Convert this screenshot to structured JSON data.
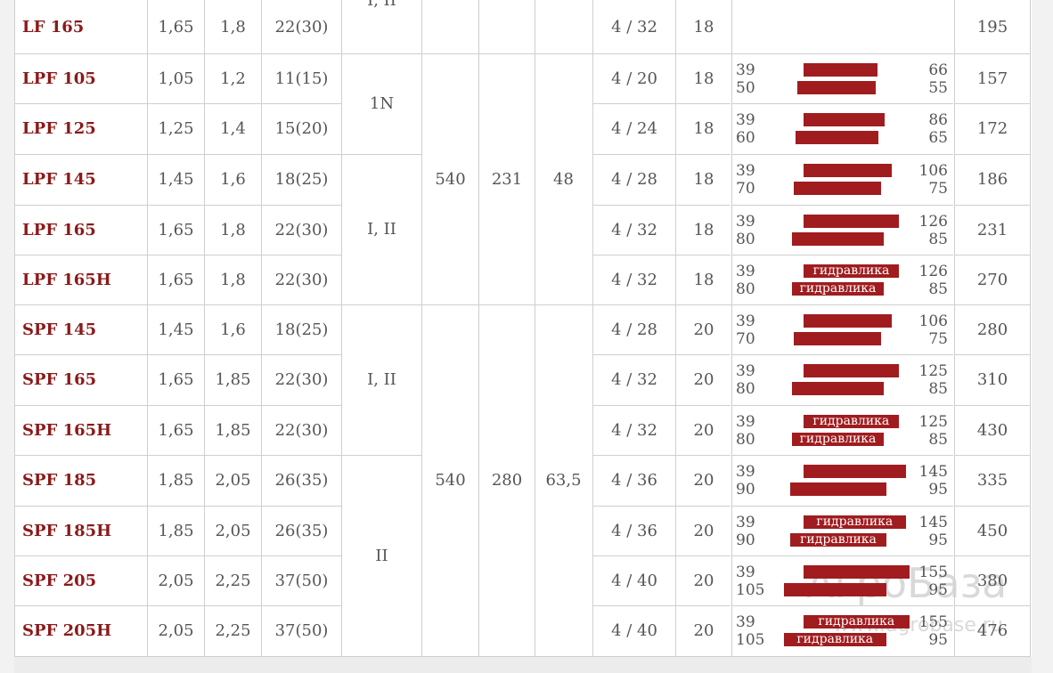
{
  "rows": [
    {
      "model": "LF 165",
      "c1": "1,65",
      "c2": "1,8",
      "c3": "22(30)",
      "blades": "4 / 32",
      "c8": "18",
      "t1": "",
      "t2": "",
      "b1": "",
      "b2": "",
      "h1": "",
      "h2": "",
      "price": "195"
    },
    {
      "model": "LPF 105",
      "c1": "1,05",
      "c2": "1,2",
      "c3": "11(15)",
      "blades": "4 / 20",
      "c8": "18",
      "t1": "39",
      "t2": "50",
      "b1": "",
      "b2": "",
      "h1": "66",
      "h2": "55",
      "price": "157"
    },
    {
      "model": "LPF 125",
      "c1": "1,25",
      "c2": "1,4",
      "c3": "15(20)",
      "blades": "4 / 24",
      "c8": "18",
      "t1": "39",
      "t2": "60",
      "b1": "",
      "b2": "",
      "h1": "86",
      "h2": "65",
      "price": "172"
    },
    {
      "model": "LPF 145",
      "c1": "1,45",
      "c2": "1,6",
      "c3": "18(25)",
      "blades": "4 / 28",
      "c8": "18",
      "t1": "39",
      "t2": "70",
      "b1": "",
      "b2": "",
      "h1": "106",
      "h2": "75",
      "price": "186"
    },
    {
      "model": "LPF 165",
      "c1": "1,65",
      "c2": "1,8",
      "c3": "22(30)",
      "blades": "4 / 32",
      "c8": "18",
      "t1": "39",
      "t2": "80",
      "b1": "",
      "b2": "",
      "h1": "126",
      "h2": "85",
      "price": "231"
    },
    {
      "model": "LPF 165H",
      "c1": "1,65",
      "c2": "1,8",
      "c3": "22(30)",
      "blades": "4 / 32",
      "c8": "18",
      "t1": "39",
      "t2": "80",
      "b1": "гидравлика",
      "b2": "гидравлика",
      "h1": "126",
      "h2": "85",
      "price": "270"
    },
    {
      "model": "SPF 145",
      "c1": "1,45",
      "c2": "1,6",
      "c3": "18(25)",
      "blades": "4 / 28",
      "c8": "20",
      "t1": "39",
      "t2": "70",
      "b1": "",
      "b2": "",
      "h1": "106",
      "h2": "75",
      "price": "280"
    },
    {
      "model": "SPF 165",
      "c1": "1,65",
      "c2": "1,85",
      "c3": "22(30)",
      "blades": "4 / 32",
      "c8": "20",
      "t1": "39",
      "t2": "80",
      "b1": "",
      "b2": "",
      "h1": "125",
      "h2": "85",
      "price": "310"
    },
    {
      "model": "SPF 165H",
      "c1": "1,65",
      "c2": "1,85",
      "c3": "22(30)",
      "blades": "4 / 32",
      "c8": "20",
      "t1": "39",
      "t2": "80",
      "b1": "гидравлика",
      "b2": "гидравлика",
      "h1": "125",
      "h2": "85",
      "price": "430"
    },
    {
      "model": "SPF 185",
      "c1": "1,85",
      "c2": "2,05",
      "c3": "26(35)",
      "blades": "4 / 36",
      "c8": "20",
      "t1": "39",
      "t2": "90",
      "b1": "",
      "b2": "",
      "h1": "145",
      "h2": "95",
      "price": "335"
    },
    {
      "model": "SPF 185H",
      "c1": "1,85",
      "c2": "2,05",
      "c3": "26(35)",
      "blades": "4 / 36",
      "c8": "20",
      "t1": "39",
      "t2": "90",
      "b1": "гидравлика",
      "b2": "гидравлика",
      "h1": "145",
      "h2": "95",
      "price": "450"
    },
    {
      "model": "SPF 205",
      "c1": "2,05",
      "c2": "2,25",
      "c3": "37(50)",
      "blades": "4 / 40",
      "c8": "20",
      "t1": "39",
      "t2": "105",
      "b1": "",
      "b2": "",
      "h1": "155",
      "h2": "95",
      "price": "380"
    },
    {
      "model": "SPF 205H",
      "c1": "2,05",
      "c2": "2,25",
      "c3": "37(50)",
      "blades": "4 / 40",
      "c8": "20",
      "t1": "39",
      "t2": "105",
      "b1": "гидравлика",
      "b2": "гидравлика",
      "h1": "155",
      "h2": "95",
      "price": "476"
    }
  ],
  "merged": {
    "cat_top": "I, II",
    "cat_1n": "1N",
    "cat_lpf": "I, II",
    "cat_spf": "I, II",
    "cat_ii": "II",
    "lpf_rpm": "540",
    "lpf_c5": "231",
    "lpf_c6": "48",
    "spf_rpm": "540",
    "spf_c5": "280",
    "spf_c6": "63,5"
  },
  "bar_color": "#a01c1f",
  "model_color": "#8b1a1a",
  "watermark": {
    "brand": "АгроБаза",
    "url": "www.agrobase.ru"
  }
}
